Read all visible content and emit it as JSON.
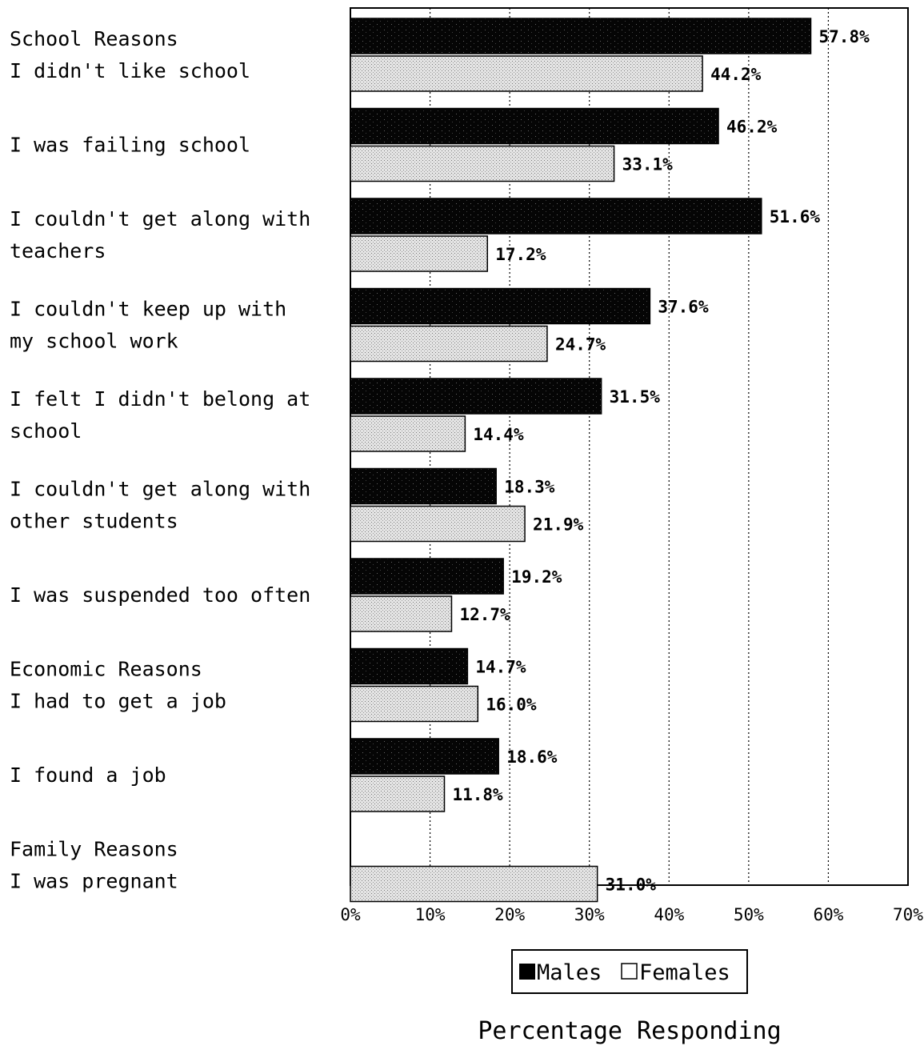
{
  "chart_data": {
    "type": "bar",
    "orientation": "horizontal",
    "title": "",
    "xlabel": "Percentage Responding",
    "ylabel": "",
    "xlim": [
      0,
      70
    ],
    "x_ticks": [
      "0%",
      "10%",
      "20%",
      "30%",
      "40%",
      "50%",
      "60%",
      "70%"
    ],
    "grid": "vertical dotted",
    "legend_position": "bottom",
    "categories": [
      [
        "School Reasons",
        "I didn't like school"
      ],
      [
        "I was failing school"
      ],
      [
        "I couldn't get along with",
        "teachers"
      ],
      [
        "I couldn't keep up with",
        "my school work"
      ],
      [
        "I felt I didn't belong at",
        "school"
      ],
      [
        "I couldn't get along with",
        "other students"
      ],
      [
        "I was suspended too often"
      ],
      [
        "Economic Reasons",
        "I had to get a job"
      ],
      [
        "I found a job"
      ],
      [
        "Family Reasons",
        "I was pregnant"
      ]
    ],
    "series": [
      {
        "name": "Males",
        "color": "#000000",
        "values": [
          57.8,
          46.2,
          51.6,
          37.6,
          31.5,
          18.3,
          19.2,
          14.7,
          18.6,
          null
        ],
        "labels": [
          "57.8%",
          "46.2%",
          "51.6%",
          "37.6%",
          "31.5%",
          "18.3%",
          "19.2%",
          "14.7%",
          "18.6%",
          ""
        ]
      },
      {
        "name": "Females",
        "color": "#c8c8c8",
        "values": [
          44.2,
          33.1,
          17.2,
          24.7,
          14.4,
          21.9,
          12.7,
          16.0,
          11.8,
          31.0
        ],
        "labels": [
          "44.2%",
          "33.1%",
          "17.2%",
          "24.7%",
          "14.4%",
          "21.9%",
          "12.7%",
          "16.0%",
          "11.8%",
          "31.0%"
        ]
      }
    ]
  }
}
